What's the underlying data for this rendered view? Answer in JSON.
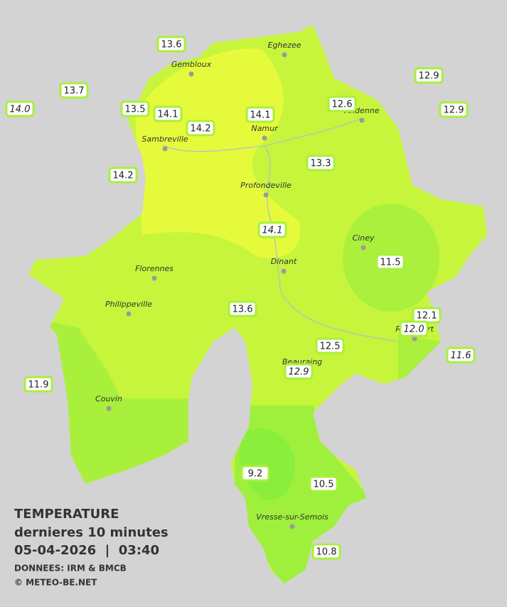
{
  "map": {
    "cities": [
      "Eghezee",
      "Gembloux",
      "Andenne",
      "Namur",
      "Sambreville",
      "Profondeville",
      "Ciney",
      "Dinant",
      "Florennes",
      "Philippeville",
      "Rochefort",
      "Beauraing",
      "Couvin",
      "Vresse-sur-Semois"
    ],
    "stations": [
      "13.6",
      "13.7",
      "14.0",
      "13.5",
      "14.1",
      "14.1",
      "14.2",
      "12.6",
      "12.9",
      "12.9",
      "13.3",
      "14.2",
      "14.1",
      "11.5",
      "13.6",
      "12.1",
      "12.0",
      "12.5",
      "12.9",
      "11.6",
      "11.9",
      "9.2",
      "10.5",
      "10.8"
    ],
    "legend": {
      "title": "TEMPERATURE",
      "subtitle": "dernieres 10 minutes",
      "datetime": "05-04-2026  |  03:40",
      "source": "DONNEES: IRM & BMCB",
      "copyright": "© METEO-BE.NET"
    }
  }
}
